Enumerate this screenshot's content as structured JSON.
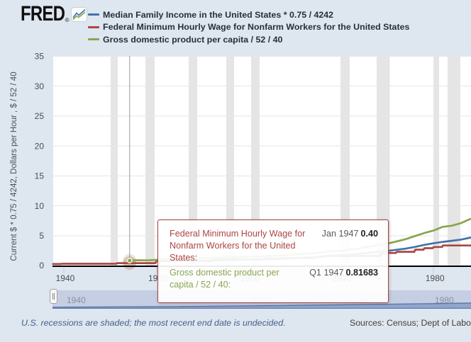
{
  "header": {
    "logo_text": "FRED",
    "registered_mark": "®",
    "logo_chart_icon": "line-chart-icon",
    "legend": [
      {
        "label": "Median Family Income in the United States * 0.75 / 4242",
        "color": "#4572a7"
      },
      {
        "label": "Federal Minimum Hourly Wage for Nonfarm Workers for the United States",
        "color": "#aa4643"
      },
      {
        "label": "Gross domestic product per capita / 52 / 40",
        "color": "#89a54e"
      }
    ]
  },
  "y_axis_title": "Current $ * 0.75 / 4242, Dollars per Hour , $ / 52 / 40",
  "chart_data": {
    "type": "line",
    "title": "",
    "xlabel": "",
    "ylabel": "Current $ * 0.75 / 4242, Dollars per Hour , $ / 52 / 40",
    "xlim": [
      1938.85,
      1984.05
    ],
    "ylim": [
      0,
      35
    ],
    "x_ticks": [
      1940,
      1950,
      1960,
      1970,
      1980
    ],
    "y_ticks": [
      0,
      5,
      10,
      15,
      20,
      25,
      30,
      35
    ],
    "grid": "horizontal",
    "legend_position": "top",
    "recessions_shaded": true,
    "recession_bands": [
      [
        1945.083,
        1945.833
      ],
      [
        1948.833,
        1949.833
      ],
      [
        1953.5,
        1954.417
      ],
      [
        1957.583,
        1958.417
      ],
      [
        1960.25,
        1961.167
      ],
      [
        1969.917,
        1970.917
      ],
      [
        1973.833,
        1975.25
      ],
      [
        1980.0,
        1980.583
      ],
      [
        1981.5,
        1982.917
      ]
    ],
    "series": [
      {
        "name": "Median Family Income in the United States * 0.75 / 4242",
        "color": "#4572a7",
        "draw": "line",
        "points": [
          [
            1953,
            0.75
          ],
          [
            1954,
            0.738
          ],
          [
            1955,
            0.782
          ],
          [
            1956,
            0.846
          ],
          [
            1957,
            0.879
          ],
          [
            1958,
            0.899
          ],
          [
            1959,
            0.958
          ],
          [
            1960,
            0.994
          ],
          [
            1961,
            1.014
          ],
          [
            1962,
            1.053
          ],
          [
            1963,
            1.105
          ],
          [
            1964,
            1.161
          ],
          [
            1965,
            1.23
          ],
          [
            1966,
            1.332
          ],
          [
            1967,
            1.403
          ],
          [
            1968,
            1.526
          ],
          [
            1969,
            1.668
          ],
          [
            1970,
            1.745
          ],
          [
            1971,
            1.818
          ],
          [
            1972,
            1.965
          ],
          [
            1973,
            2.131
          ],
          [
            1974,
            2.281
          ],
          [
            1975,
            2.426
          ],
          [
            1976,
            2.645
          ],
          [
            1977,
            2.831
          ],
          [
            1978,
            3.119
          ],
          [
            1979,
            3.463
          ],
          [
            1980,
            3.717
          ],
          [
            1981,
            3.958
          ],
          [
            1982,
            4.143
          ],
          [
            1983,
            4.346
          ],
          [
            1984,
            4.674
          ],
          [
            1984.05,
            4.69
          ]
        ]
      },
      {
        "name": "Federal Minimum Hourly Wage for Nonfarm Workers for the United States",
        "color": "#aa4643",
        "draw": "step",
        "points": [
          [
            1938.75,
            0.25
          ],
          [
            1939.75,
            0.3
          ],
          [
            1945.75,
            0.4
          ],
          [
            1950.0,
            0.75
          ],
          [
            1956.167,
            1.0
          ],
          [
            1961.667,
            1.15
          ],
          [
            1963.667,
            1.25
          ],
          [
            1967.083,
            1.4
          ],
          [
            1968.083,
            1.6
          ],
          [
            1974.333,
            2.0
          ],
          [
            1975.0,
            2.1
          ],
          [
            1976.0,
            2.3
          ],
          [
            1978.0,
            2.65
          ],
          [
            1979.0,
            2.9
          ],
          [
            1980.0,
            3.1
          ],
          [
            1981.0,
            3.35
          ],
          [
            1984.05,
            3.35
          ]
        ]
      },
      {
        "name": "Gross domestic product per capita / 52 / 40",
        "color": "#89a54e",
        "draw": "line",
        "points": [
          [
            1947,
            0.8168
          ],
          [
            1948,
            0.883
          ],
          [
            1949,
            0.863
          ],
          [
            1950,
            0.946
          ],
          [
            1951,
            1.08
          ],
          [
            1952,
            1.128
          ],
          [
            1953,
            1.176
          ],
          [
            1954,
            1.163
          ],
          [
            1955,
            1.233
          ],
          [
            1956,
            1.288
          ],
          [
            1957,
            1.336
          ],
          [
            1958,
            1.338
          ],
          [
            1959,
            1.432
          ],
          [
            1960,
            1.45
          ],
          [
            1961,
            1.48
          ],
          [
            1962,
            1.563
          ],
          [
            1963,
            1.625
          ],
          [
            1964,
            1.72
          ],
          [
            1965,
            1.84
          ],
          [
            1966,
            1.987
          ],
          [
            1967,
            2.072
          ],
          [
            1968,
            2.239
          ],
          [
            1969,
            2.39
          ],
          [
            1970,
            2.488
          ],
          [
            1971,
            2.656
          ],
          [
            1972,
            2.878
          ],
          [
            1973,
            3.172
          ],
          [
            1974,
            3.398
          ],
          [
            1975,
            3.657
          ],
          [
            1976,
            4.026
          ],
          [
            1977,
            4.422
          ],
          [
            1978,
            4.936
          ],
          [
            1979,
            5.437
          ],
          [
            1980,
            5.849
          ],
          [
            1981,
            6.479
          ],
          [
            1982,
            6.663
          ],
          [
            1983,
            7.116
          ],
          [
            1984,
            7.804
          ],
          [
            1984.05,
            7.83
          ]
        ]
      }
    ],
    "hover": {
      "x": 1947.12,
      "crosshair_color": "#9b9b9b",
      "points": [
        {
          "series_index": 2,
          "value": 0.8168,
          "halo_color": "rgba(137,165,78,0.22)"
        },
        {
          "series_index": 1,
          "value": 0.4,
          "halo_color": "rgba(170,70,67,0.25)"
        }
      ]
    },
    "colors": {
      "plot_background": "#ffffff",
      "grid_line": "#e6e6e6",
      "recession_band": "#e5e5e5",
      "axis_line": "#000000",
      "tick_line": "#c3ccd9",
      "tick_label": "#4d4d4d"
    }
  },
  "tooltip": {
    "rows": [
      {
        "label": "Federal Minimum Hourly Wage for Nonfarm Workers for the United States:",
        "date": "Jan 1947",
        "value": "0.40",
        "color": "#aa4643"
      },
      {
        "label": "Gross domestic product per capita / 52 / 40:",
        "date": "Q1 1947",
        "value": "0.81683",
        "color": "#89a54e"
      }
    ]
  },
  "slider": {
    "labels": [
      {
        "text": "1940",
        "x": 109
      },
      {
        "text": "1960",
        "x": 370
      },
      {
        "text": "1980",
        "x": 628
      }
    ],
    "nav_points": [
      [
        74,
        433.8
      ],
      [
        150,
        433.4
      ],
      [
        250,
        432.9
      ],
      [
        350,
        432.0
      ],
      [
        420,
        431.2
      ],
      [
        480,
        430.4
      ],
      [
        540,
        429.7
      ],
      [
        600,
        428.9
      ],
      [
        664,
        428.0
      ]
    ],
    "nav_line_color": "#5b77ab",
    "nav_fill_color": "rgba(122,147,193,0.68)",
    "track_color": "#c5cee2"
  },
  "footer": {
    "note": "U.S. recessions are shaded; the most recent end date is undecided.",
    "sources": "Sources: Census; Dept of Labor"
  }
}
